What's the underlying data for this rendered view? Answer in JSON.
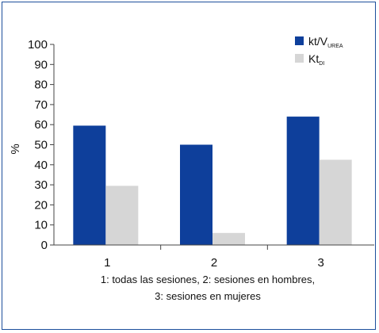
{
  "chart_data": {
    "type": "bar",
    "ylabel": "%",
    "ylim": [
      0,
      100
    ],
    "yticks": [
      0,
      10,
      20,
      30,
      40,
      50,
      60,
      70,
      80,
      90,
      100
    ],
    "categories": [
      "1",
      "2",
      "3"
    ],
    "caption_lines": [
      "1: todas las sesiones, 2: sesiones en hombres,",
      "3: sesiones en mujeres"
    ],
    "series": [
      {
        "name": "kt/V",
        "name_sub": "UREA",
        "color": "#0e3f9b",
        "values": [
          59.5,
          50,
          64
        ]
      },
      {
        "name": "Kt",
        "name_sub": "DI",
        "color": "#d6d6d6",
        "values": [
          29.5,
          6,
          42.5
        ]
      }
    ],
    "legend_position": "top-right",
    "grid": false
  }
}
